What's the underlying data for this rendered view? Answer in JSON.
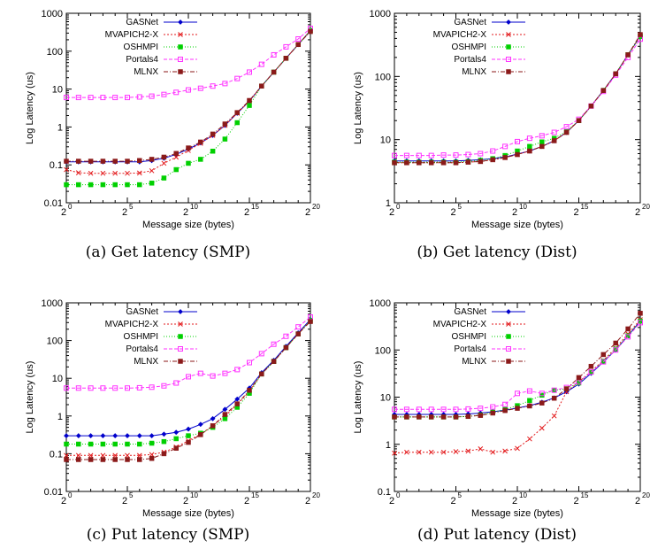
{
  "colors": {
    "GASNet": "#0000cc",
    "MVAPICH2-X": "#e31a1c",
    "OSHMPI": "#00d000",
    "Portals4": "#ff33ff",
    "MLNX": "#8b1a1a"
  },
  "chart_data": [
    {
      "type": "line",
      "caption": "(a) Get latency (SMP)",
      "xlabel": "Message size (bytes)",
      "ylabel": "Log Latency (us)",
      "x_log2": [
        0,
        1,
        2,
        3,
        4,
        5,
        6,
        7,
        8,
        9,
        10,
        11,
        12,
        13,
        14,
        15,
        16,
        17,
        18,
        19,
        20
      ],
      "xticks": [
        {
          "base": "2",
          "exp": "0"
        },
        {
          "base": "2",
          "exp": "5"
        },
        {
          "base": "2",
          "exp": "10"
        },
        {
          "base": "2",
          "exp": "15"
        },
        {
          "base": "2",
          "exp": "20"
        }
      ],
      "yscale": "log",
      "ylim": [
        0.01,
        1000
      ],
      "yticks": [
        "0.01",
        "0.1",
        "1",
        "10",
        "100",
        "1000"
      ],
      "legend": "top-left",
      "series": [
        {
          "name": "GASNet",
          "values": [
            0.12,
            0.12,
            0.12,
            0.12,
            0.12,
            0.12,
            0.12,
            0.13,
            0.15,
            0.19,
            0.26,
            0.38,
            0.6,
            1.1,
            2.3,
            4.8,
            12,
            28,
            65,
            150,
            350
          ]
        },
        {
          "name": "MVAPICH2-X",
          "values": [
            0.075,
            0.062,
            0.06,
            0.06,
            0.06,
            0.06,
            0.061,
            0.07,
            0.11,
            0.16,
            0.24,
            0.37,
            0.6,
            1.1,
            2.3,
            4.8,
            12,
            28,
            65,
            150,
            350
          ]
        },
        {
          "name": "OSHMPI",
          "values": [
            0.03,
            0.03,
            0.03,
            0.03,
            0.03,
            0.03,
            0.03,
            0.033,
            0.045,
            0.075,
            0.11,
            0.14,
            0.23,
            0.48,
            1.3,
            3.7,
            12,
            28,
            65,
            150,
            350
          ]
        },
        {
          "name": "Portals4",
          "values": [
            6,
            6,
            6,
            6,
            6,
            6,
            6.2,
            6.5,
            7.2,
            8.2,
            9.5,
            10.5,
            12,
            14,
            19,
            28,
            45,
            80,
            130,
            210,
            400
          ]
        },
        {
          "name": "MLNX",
          "values": [
            0.125,
            0.125,
            0.125,
            0.125,
            0.125,
            0.125,
            0.13,
            0.14,
            0.16,
            0.2,
            0.28,
            0.4,
            0.65,
            1.2,
            2.4,
            5,
            12,
            28,
            65,
            150,
            330
          ]
        }
      ]
    },
    {
      "type": "line",
      "caption": "(b) Get latency (Dist)",
      "xlabel": "Message size (bytes)",
      "ylabel": "Log Latency (us)",
      "x_log2": [
        0,
        1,
        2,
        3,
        4,
        5,
        6,
        7,
        8,
        9,
        10,
        11,
        12,
        13,
        14,
        15,
        16,
        17,
        18,
        19,
        20
      ],
      "xticks": [
        {
          "base": "2",
          "exp": "0"
        },
        {
          "base": "2",
          "exp": "5"
        },
        {
          "base": "2",
          "exp": "10"
        },
        {
          "base": "2",
          "exp": "15"
        },
        {
          "base": "2",
          "exp": "20"
        }
      ],
      "yscale": "log",
      "ylim": [
        1,
        1000
      ],
      "yticks": [
        "1",
        "10",
        "100",
        "1000"
      ],
      "legend": "top-left",
      "series": [
        {
          "name": "GASNet",
          "values": [
            4.6,
            4.6,
            4.6,
            4.6,
            4.6,
            4.6,
            4.7,
            4.8,
            5,
            5.3,
            5.9,
            6.6,
            7.8,
            9.6,
            13,
            20,
            34,
            60,
            110,
            220,
            430
          ]
        },
        {
          "name": "MVAPICH2-X",
          "values": [
            4.3,
            4.3,
            4.3,
            4.3,
            4.3,
            4.3,
            4.4,
            4.5,
            4.8,
            5.2,
            5.8,
            6.6,
            7.8,
            9.6,
            13,
            20,
            34,
            60,
            110,
            220,
            430
          ]
        },
        {
          "name": "OSHMPI",
          "values": [
            4.4,
            4.4,
            4.4,
            4.4,
            4.4,
            4.4,
            4.5,
            4.7,
            5,
            5.6,
            6.6,
            7.8,
            9.2,
            10.5,
            13.5,
            20,
            34,
            60,
            110,
            220,
            430
          ]
        },
        {
          "name": "Portals4",
          "values": [
            5.6,
            5.6,
            5.6,
            5.6,
            5.7,
            5.7,
            5.8,
            6,
            6.6,
            7.8,
            9.3,
            10.5,
            11.5,
            13,
            16,
            21,
            34,
            58,
            105,
            200,
            390
          ]
        },
        {
          "name": "MLNX",
          "values": [
            4.3,
            4.3,
            4.3,
            4.3,
            4.3,
            4.3,
            4.4,
            4.5,
            4.8,
            5.2,
            5.8,
            6.6,
            7.8,
            9.6,
            13,
            20,
            34,
            60,
            110,
            220,
            460
          ]
        }
      ]
    },
    {
      "type": "line",
      "caption": "(c) Put latency (SMP)",
      "xlabel": "Message size (bytes)",
      "ylabel": "Log Latency (us)",
      "x_log2": [
        0,
        1,
        2,
        3,
        4,
        5,
        6,
        7,
        8,
        9,
        10,
        11,
        12,
        13,
        14,
        15,
        16,
        17,
        18,
        19,
        20
      ],
      "xticks": [
        {
          "base": "2",
          "exp": "0"
        },
        {
          "base": "2",
          "exp": "5"
        },
        {
          "base": "2",
          "exp": "10"
        },
        {
          "base": "2",
          "exp": "15"
        },
        {
          "base": "2",
          "exp": "20"
        }
      ],
      "yscale": "log",
      "ylim": [
        0.01,
        1000
      ],
      "yticks": [
        "0.01",
        "0.1",
        "1",
        "10",
        "100",
        "1000"
      ],
      "legend": "top-left",
      "series": [
        {
          "name": "GASNet",
          "values": [
            0.3,
            0.3,
            0.3,
            0.3,
            0.3,
            0.3,
            0.3,
            0.3,
            0.33,
            0.37,
            0.45,
            0.6,
            0.85,
            1.5,
            2.8,
            5.5,
            14,
            30,
            70,
            160,
            360
          ]
        },
        {
          "name": "MVAPICH2-X",
          "values": [
            0.09,
            0.09,
            0.09,
            0.09,
            0.09,
            0.09,
            0.09,
            0.095,
            0.11,
            0.15,
            0.22,
            0.33,
            0.55,
            1.0,
            2.0,
            4.5,
            13,
            28,
            65,
            150,
            340
          ]
        },
        {
          "name": "OSHMPI",
          "values": [
            0.18,
            0.18,
            0.18,
            0.18,
            0.18,
            0.18,
            0.18,
            0.19,
            0.21,
            0.25,
            0.3,
            0.35,
            0.5,
            0.85,
            1.7,
            4.0,
            13,
            28,
            65,
            150,
            340
          ]
        },
        {
          "name": "Portals4",
          "values": [
            5.5,
            5.5,
            5.5,
            5.5,
            5.5,
            5.5,
            5.6,
            5.8,
            6.3,
            7.5,
            11,
            13.5,
            11.5,
            13.5,
            17,
            26,
            45,
            80,
            130,
            230,
            420
          ]
        },
        {
          "name": "MLNX",
          "values": [
            0.07,
            0.07,
            0.07,
            0.07,
            0.07,
            0.07,
            0.07,
            0.075,
            0.1,
            0.14,
            0.2,
            0.32,
            0.55,
            1.1,
            2.1,
            4.8,
            13,
            28,
            65,
            150,
            320
          ]
        }
      ]
    },
    {
      "type": "line",
      "caption": "(d) Put latency (Dist)",
      "xlabel": "Message size (bytes)",
      "ylabel": "Log Latency (us)",
      "x_log2": [
        0,
        1,
        2,
        3,
        4,
        5,
        6,
        7,
        8,
        9,
        10,
        11,
        12,
        13,
        14,
        15,
        16,
        17,
        18,
        19,
        20
      ],
      "xticks": [
        {
          "base": "2",
          "exp": "0"
        },
        {
          "base": "2",
          "exp": "5"
        },
        {
          "base": "2",
          "exp": "10"
        },
        {
          "base": "2",
          "exp": "15"
        },
        {
          "base": "2",
          "exp": "20"
        }
      ],
      "yscale": "log",
      "ylim": [
        0.1,
        1000
      ],
      "yticks": [
        "0.1",
        "1",
        "10",
        "100",
        "1000"
      ],
      "legend": "top-left",
      "series": [
        {
          "name": "GASNet",
          "values": [
            4.3,
            4.3,
            4.3,
            4.3,
            4.3,
            4.3,
            4.4,
            4.6,
            4.9,
            5.3,
            5.9,
            6.6,
            7.8,
            9.6,
            13,
            19,
            32,
            56,
            100,
            200,
            410
          ]
        },
        {
          "name": "MVAPICH2-X",
          "values": [
            0.65,
            0.68,
            0.68,
            0.68,
            0.68,
            0.7,
            0.72,
            0.8,
            0.68,
            0.72,
            0.82,
            1.3,
            2.2,
            4.0,
            13,
            21,
            35,
            60,
            110,
            220,
            440
          ]
        },
        {
          "name": "OSHMPI",
          "values": [
            3.8,
            3.8,
            3.8,
            3.8,
            3.8,
            3.8,
            3.9,
            4.2,
            4.8,
            5.5,
            6.6,
            8.5,
            11,
            14,
            15,
            20,
            34,
            58,
            105,
            200,
            410
          ]
        },
        {
          "name": "Portals4",
          "values": [
            5.5,
            5.5,
            5.5,
            5.5,
            5.5,
            5.5,
            5.6,
            5.8,
            6.2,
            7,
            12,
            13.5,
            12,
            14,
            16,
            21,
            34,
            56,
            100,
            190,
            380
          ]
        },
        {
          "name": "MLNX",
          "values": [
            3.8,
            3.8,
            3.8,
            3.8,
            3.8,
            3.8,
            3.9,
            4.1,
            4.6,
            5.2,
            5.8,
            6.5,
            7.5,
            9.5,
            15,
            26,
            45,
            80,
            140,
            280,
            600
          ]
        }
      ]
    }
  ]
}
